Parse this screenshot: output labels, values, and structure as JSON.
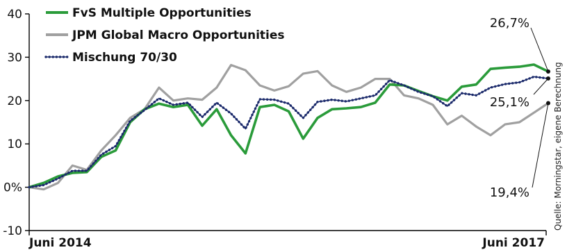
{
  "chart_data": {
    "type": "line",
    "title": "",
    "xlabel": "",
    "ylabel": "",
    "ylim": [
      -10,
      40
    ],
    "yticks": [
      -10,
      0,
      10,
      20,
      30,
      40
    ],
    "ytick_labels": [
      "-10",
      "0%",
      "10",
      "20",
      "30",
      "40"
    ],
    "x_tick_labels": [
      "Juni 2014",
      "Juni 2017"
    ],
    "grid": false,
    "legend_position": "top-left",
    "source_note": "Quelle: Morningstar, eigene Berechnung",
    "x": [
      0,
      1,
      2,
      3,
      4,
      5,
      6,
      7,
      8,
      9,
      10,
      11,
      12,
      13,
      14,
      15,
      16,
      17,
      18,
      19,
      20,
      21,
      22,
      23,
      24,
      25,
      26,
      27,
      28,
      29,
      30,
      31,
      32,
      33,
      34,
      35,
      36
    ],
    "series": [
      {
        "name": "FvS Multiple Opportunities",
        "color": "#2a9b3a",
        "style": "solid-thick",
        "values": [
          0,
          1,
          2.5,
          3.3,
          3.5,
          7,
          8.5,
          15,
          18,
          19.3,
          18.5,
          19,
          14.2,
          18,
          12,
          7.8,
          18.5,
          19,
          17.5,
          11.2,
          16,
          18,
          18.2,
          18.5,
          19.5,
          23.7,
          23.5,
          22.2,
          21,
          20,
          23.2,
          23.7,
          27.3,
          27.6,
          27.8,
          28.3,
          26.7
        ],
        "end_label": "26,7%"
      },
      {
        "name": "JPM Global Macro Opportunities",
        "color": "#a0a0a0",
        "style": "solid",
        "values": [
          0,
          -0.5,
          1,
          5,
          4,
          8.5,
          12,
          16,
          18,
          23,
          20,
          20.5,
          20.2,
          23,
          28.2,
          27,
          23.5,
          22.3,
          23.3,
          26.2,
          26.8,
          23.5,
          22,
          23,
          25,
          25,
          21.2,
          20.5,
          19,
          14.5,
          16.5,
          14,
          12,
          14.5,
          15,
          17.2,
          19.4
        ],
        "end_label": "19,4%"
      },
      {
        "name": "Mischung 70/30",
        "color": "#1b2a6b",
        "style": "dotted",
        "values": [
          0,
          0.5,
          2,
          3.8,
          3.8,
          7.5,
          9.5,
          15.3,
          17.8,
          20.5,
          19,
          19.5,
          16.2,
          19.5,
          17,
          13.5,
          20.3,
          20.2,
          19.3,
          16,
          19.7,
          20.2,
          19.8,
          20.5,
          21.2,
          24.7,
          23.5,
          22,
          21,
          18.7,
          21.7,
          21.2,
          23,
          23.8,
          24.2,
          25.5,
          25.1
        ],
        "end_label": "25,1%"
      }
    ]
  }
}
